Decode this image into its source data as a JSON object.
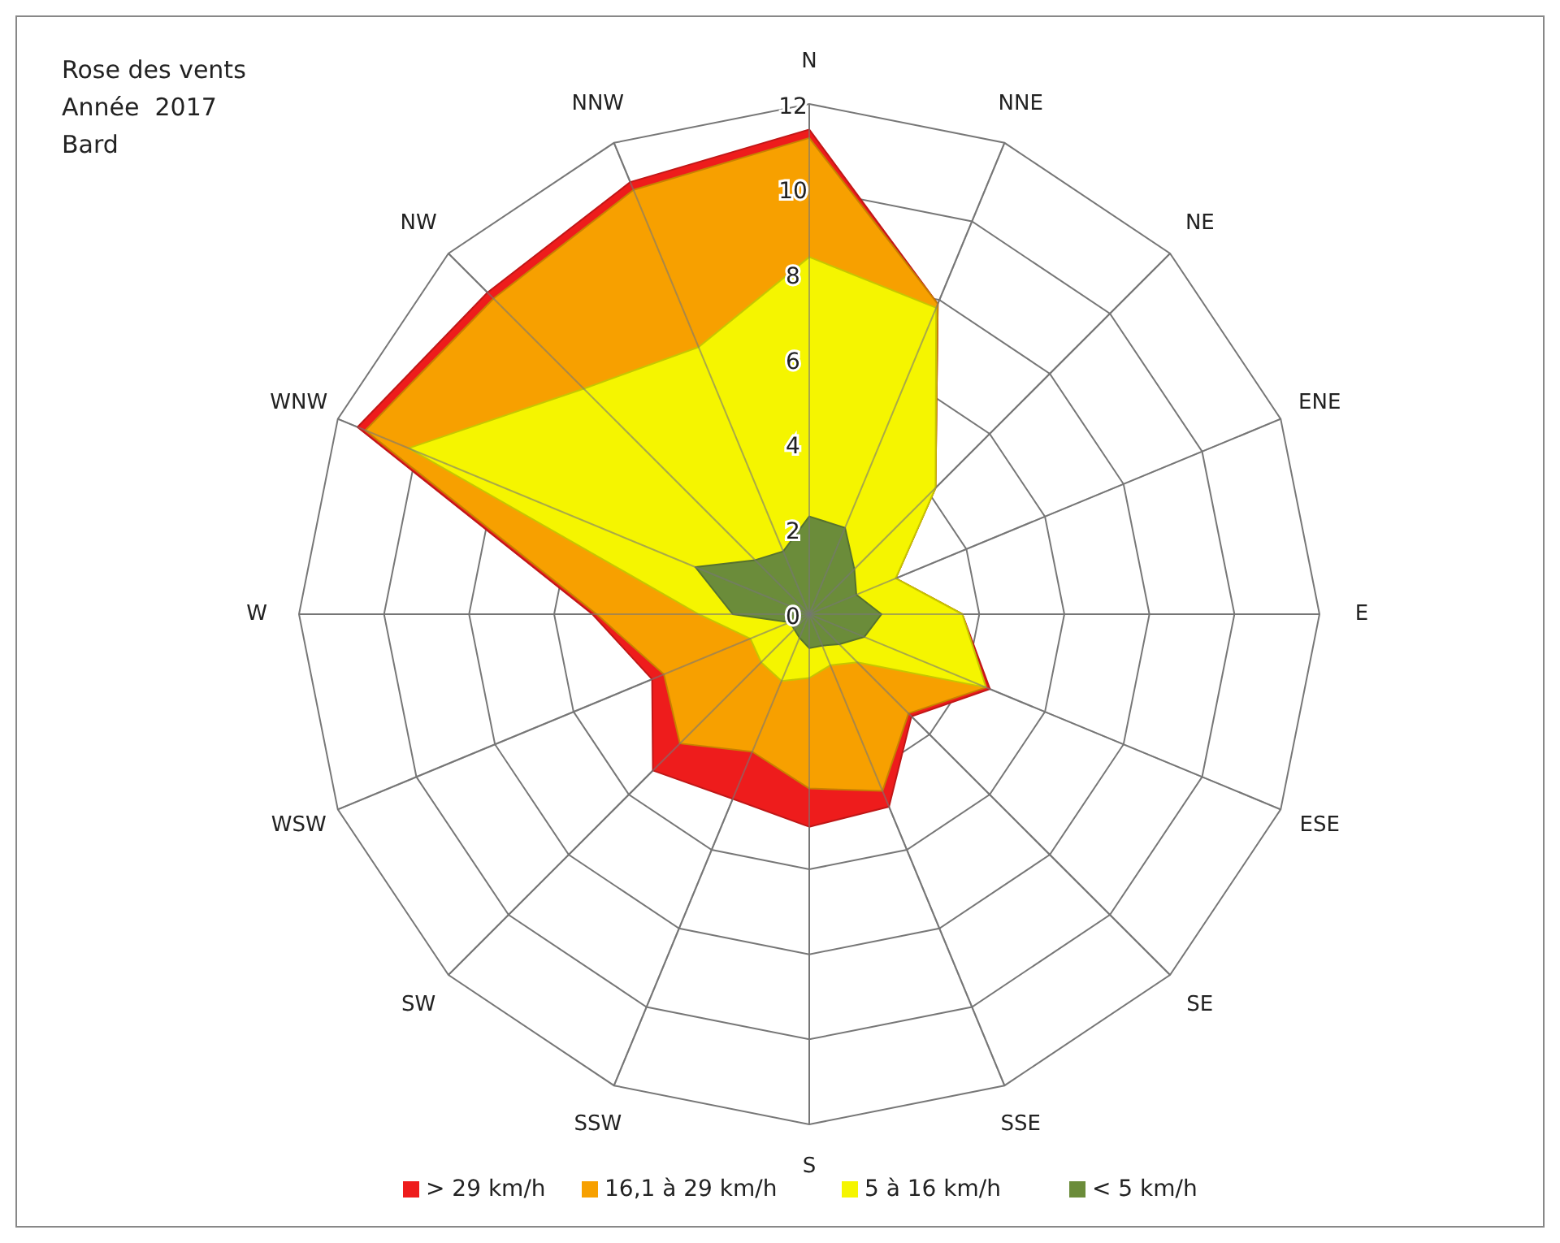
{
  "chart_data": {
    "type": "radar",
    "title": "Rose des vents\nAnnée  2017\nBard",
    "categories": [
      "N",
      "NNE",
      "NE",
      "ENE",
      "E",
      "ESE",
      "SE",
      "SSE",
      "S",
      "SSW",
      "SW",
      "WSW",
      "W",
      "WNW",
      "NW",
      "NNW"
    ],
    "ylim": [
      0,
      12
    ],
    "yticks": [
      0,
      2,
      4,
      6,
      8,
      10,
      12
    ],
    "grid": true,
    "legend": "bottom",
    "series": [
      {
        "name": "> 29 km/h",
        "color": "#ee1c1c",
        "values": [
          11.4,
          7.9,
          4.2,
          2.2,
          3.6,
          4.6,
          3.4,
          4.9,
          5.0,
          4.7,
          5.2,
          4.0,
          5.1,
          11.5,
          10.7,
          11.0
        ]
      },
      {
        "name": "16,1 à 29 km/h",
        "color": "#f7a000",
        "values": [
          11.2,
          7.9,
          4.2,
          2.2,
          3.6,
          4.5,
          3.3,
          4.5,
          4.1,
          3.5,
          4.3,
          3.7,
          5.0,
          11.3,
          10.5,
          10.8
        ]
      },
      {
        "name": "5 à 16 km/h",
        "color": "#f5f500",
        "values": [
          8.4,
          7.8,
          4.2,
          2.2,
          3.6,
          4.5,
          1.6,
          1.3,
          1.5,
          1.7,
          1.6,
          1.5,
          2.6,
          10.2,
          7.5,
          6.8
        ]
      },
      {
        "name": "< 5 km/h",
        "color": "#6b8c3a",
        "values": [
          2.3,
          2.2,
          1.5,
          1.2,
          1.7,
          1.4,
          1.0,
          0.8,
          0.8,
          0.6,
          0.5,
          0.5,
          1.8,
          2.9,
          1.8,
          1.6
        ]
      }
    ]
  }
}
